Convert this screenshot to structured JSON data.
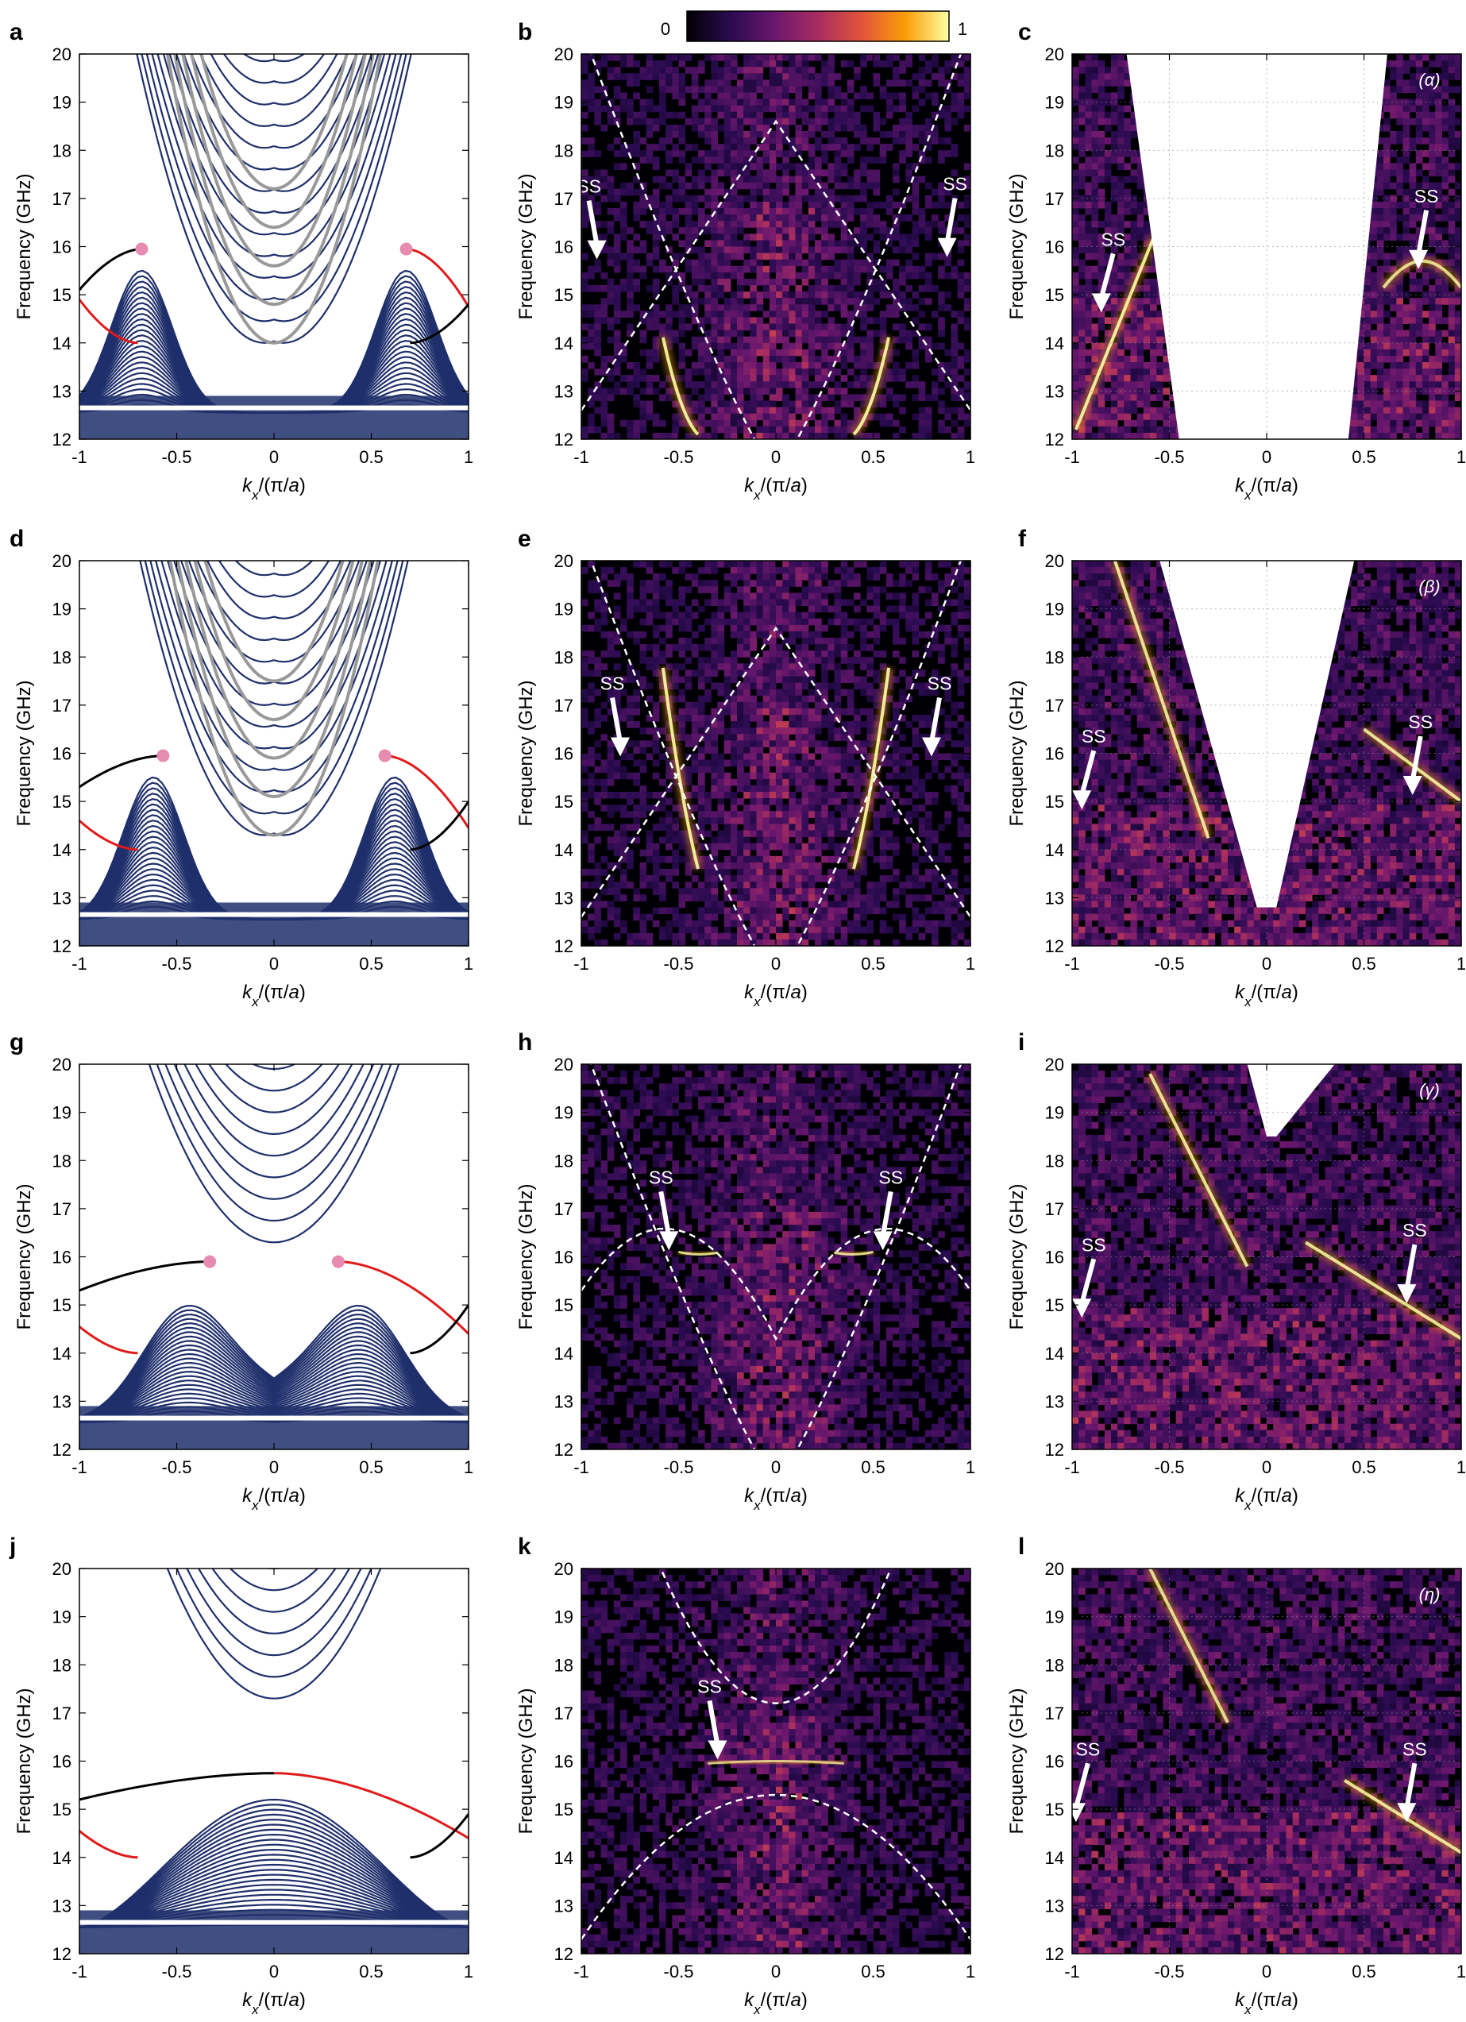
{
  "figure": {
    "colorbar": {
      "min_label": "0",
      "max_label": "1",
      "colormap": [
        "#000004",
        "#2a0b51",
        "#6a176e",
        "#a72d5f",
        "#e2543b",
        "#fb9d07",
        "#fcffa4"
      ]
    },
    "colors": {
      "bulk_band": "#1f2f6b",
      "gray_band": "#999999",
      "edge_black": "#000000",
      "edge_red": "#e01b1b",
      "dot": "#e88bb0",
      "heat_bg": "#000004",
      "mask": "#ffffff"
    },
    "xlabel": "k_x/(π/a)",
    "ylabel": "Frequency (GHz)",
    "xticks": [
      "-1",
      "-0.5",
      "0",
      "0.5",
      "1"
    ],
    "yticks": [
      "12",
      "13",
      "14",
      "15",
      "16",
      "17",
      "18",
      "19",
      "20"
    ],
    "ss_label": "SS"
  },
  "chart_data": [
    {
      "panel": "a",
      "type": "line",
      "title": "",
      "xlim": [
        -1,
        1
      ],
      "ylim": [
        12,
        20
      ],
      "top_bulk_min": 14.0,
      "gray_bands": true,
      "dot_k": 0.68,
      "dot_f": 15.95,
      "edge_mid_f": 15.1,
      "edge_end_f": 14.9
    },
    {
      "panel": "b",
      "type": "heatmap",
      "title": "",
      "xlim": [
        -1,
        1
      ],
      "ylim": [
        12,
        20
      ],
      "ss_points": [
        [
          -0.92,
          15.8
        ],
        [
          0.88,
          15.85
        ]
      ]
    },
    {
      "panel": "c",
      "type": "heatmap",
      "title": "",
      "tag": "(α)",
      "xlim": [
        -1,
        1
      ],
      "ylim": [
        12,
        20
      ],
      "ss_points": [
        [
          -0.85,
          14.7
        ],
        [
          0.78,
          15.6
        ]
      ]
    },
    {
      "panel": "d",
      "type": "line",
      "title": "",
      "xlim": [
        -1,
        1
      ],
      "ylim": [
        12,
        20
      ],
      "top_bulk_min": 14.3,
      "gray_bands": true,
      "dot_k": 0.57,
      "dot_f": 15.95,
      "edge_mid_f": 15.3,
      "edge_end_f": 14.6
    },
    {
      "panel": "e",
      "type": "heatmap",
      "title": "",
      "xlim": [
        -1,
        1
      ],
      "ylim": [
        12,
        20
      ],
      "ss_points": [
        [
          -0.8,
          16.0
        ],
        [
          0.8,
          16.0
        ]
      ]
    },
    {
      "panel": "f",
      "type": "heatmap",
      "title": "",
      "tag": "(β)",
      "xlim": [
        -1,
        1
      ],
      "ylim": [
        12,
        20
      ],
      "ss_points": [
        [
          -0.95,
          14.9
        ],
        [
          0.75,
          15.2
        ]
      ]
    },
    {
      "panel": "g",
      "type": "line",
      "title": "",
      "xlim": [
        -1,
        1
      ],
      "ylim": [
        12,
        20
      ],
      "top_bulk_min": 16.3,
      "gray_bands": false,
      "dot_k": 0.33,
      "dot_f": 15.9,
      "edge_mid_f": 15.3,
      "edge_end_f": 14.55
    },
    {
      "panel": "h",
      "type": "heatmap",
      "title": "",
      "xlim": [
        -1,
        1
      ],
      "ylim": [
        12,
        20
      ],
      "ss_points": [
        [
          -0.55,
          16.2
        ],
        [
          0.55,
          16.2
        ]
      ]
    },
    {
      "panel": "i",
      "type": "heatmap",
      "title": "",
      "tag": "(γ)",
      "xlim": [
        -1,
        1
      ],
      "ylim": [
        12,
        20
      ],
      "ss_points": [
        [
          -0.95,
          14.8
        ],
        [
          0.72,
          15.1
        ]
      ]
    },
    {
      "panel": "j",
      "type": "line",
      "title": "",
      "xlim": [
        -1,
        1
      ],
      "ylim": [
        12,
        20
      ],
      "top_bulk_min": 17.3,
      "gray_bands": false,
      "dot_k": null,
      "dot_f": 15.75,
      "edge_mid_f": 15.2,
      "edge_end_f": 14.55
    },
    {
      "panel": "k",
      "type": "heatmap",
      "title": "",
      "xlim": [
        -1,
        1
      ],
      "ylim": [
        12,
        20
      ],
      "ss_points": [
        [
          -0.3,
          16.1
        ]
      ]
    },
    {
      "panel": "l",
      "type": "heatmap",
      "title": "",
      "tag": "(η)",
      "xlim": [
        -1,
        1
      ],
      "ylim": [
        12,
        20
      ],
      "ss_points": [
        [
          -0.98,
          14.8
        ],
        [
          0.72,
          14.8
        ]
      ]
    }
  ]
}
